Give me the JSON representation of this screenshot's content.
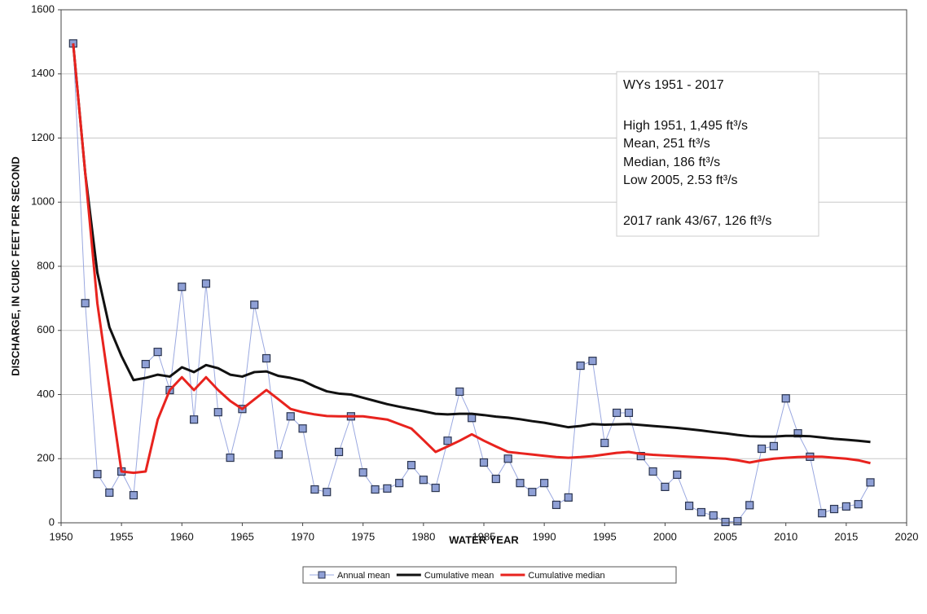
{
  "chart_data": {
    "type": "line",
    "xlabel": "WATER YEAR",
    "ylabel": "DISCHARGE, IN CUBIC FEET PER SECOND",
    "x": [
      1951,
      1952,
      1953,
      1954,
      1955,
      1956,
      1957,
      1958,
      1959,
      1960,
      1961,
      1962,
      1963,
      1964,
      1965,
      1966,
      1967,
      1968,
      1969,
      1970,
      1971,
      1972,
      1973,
      1974,
      1975,
      1976,
      1977,
      1978,
      1979,
      1980,
      1981,
      1982,
      1983,
      1984,
      1985,
      1986,
      1987,
      1988,
      1989,
      1990,
      1991,
      1992,
      1993,
      1994,
      1995,
      1996,
      1997,
      1998,
      1999,
      2000,
      2001,
      2002,
      2003,
      2004,
      2005,
      2006,
      2007,
      2008,
      2009,
      2010,
      2011,
      2012,
      2013,
      2014,
      2015,
      2016,
      2017
    ],
    "series": [
      {
        "name": "Annual mean",
        "color": "#9aa8e0",
        "marker": "square",
        "values": [
          1495,
          685,
          152,
          94,
          160,
          86,
          495,
          533,
          414,
          736,
          322,
          746,
          345,
          203,
          355,
          680,
          513,
          213,
          332,
          294,
          104,
          96,
          221,
          332,
          157,
          104,
          107,
          124,
          180,
          134,
          109,
          256,
          409,
          327,
          188,
          137,
          200,
          124,
          96,
          124,
          56,
          79,
          490,
          505,
          249,
          343,
          343,
          208,
          160,
          112,
          150,
          53,
          33,
          23,
          2.53,
          5,
          55,
          231,
          239,
          388,
          279,
          206,
          30,
          43,
          51,
          58,
          126
        ]
      },
      {
        "name": "Cumulative mean",
        "color": "#111111",
        "values": [
          1495,
          1090,
          780,
          610,
          520,
          445,
          452,
          462,
          456,
          485,
          470,
          492,
          482,
          462,
          456,
          470,
          472,
          458,
          452,
          443,
          425,
          410,
          403,
          400,
          390,
          380,
          370,
          362,
          355,
          348,
          340,
          338,
          340,
          340,
          336,
          331,
          328,
          323,
          317,
          312,
          305,
          298,
          302,
          308,
          306,
          307,
          308,
          305,
          302,
          299,
          296,
          292,
          288,
          283,
          279,
          274,
          270,
          269,
          269,
          271,
          271,
          270,
          266,
          262,
          259,
          256,
          252
        ]
      },
      {
        "name": "Cumulative median",
        "color": "#e8231e",
        "values": [
          1495,
          1090,
          685,
          420,
          160,
          156,
          160,
          322,
          414,
          454,
          414,
          454,
          414,
          380,
          355,
          385,
          414,
          385,
          355,
          345,
          338,
          333,
          332,
          332,
          332,
          327,
          322,
          308,
          294,
          258,
          221,
          238,
          256,
          276,
          256,
          238,
          221,
          217,
          213,
          209,
          205,
          203,
          205,
          208,
          213,
          218,
          221,
          215,
          212,
          210,
          208,
          206,
          204,
          202,
          200,
          195,
          188,
          195,
          200,
          203,
          205,
          206,
          206,
          203,
          200,
          195,
          186
        ]
      }
    ],
    "xlim": [
      1950,
      2020
    ],
    "xticks": [
      1950,
      1955,
      1960,
      1965,
      1970,
      1975,
      1980,
      1985,
      1990,
      1995,
      2000,
      2005,
      2010,
      2015,
      2020
    ],
    "ylim": [
      0,
      1600
    ],
    "yticks": [
      0,
      200,
      400,
      600,
      800,
      1000,
      1200,
      1400,
      1600
    ],
    "grid": true,
    "legend": "bottom",
    "annotation": [
      "WYs 1951 - 2017",
      "High 1951, 1,495 ft³/s",
      "Mean, 251 ft³/s",
      "Median, 186 ft³/s",
      "Low 2005, 2.53 ft³/s",
      "2017 rank 43/67, 126 ft³/s"
    ]
  }
}
